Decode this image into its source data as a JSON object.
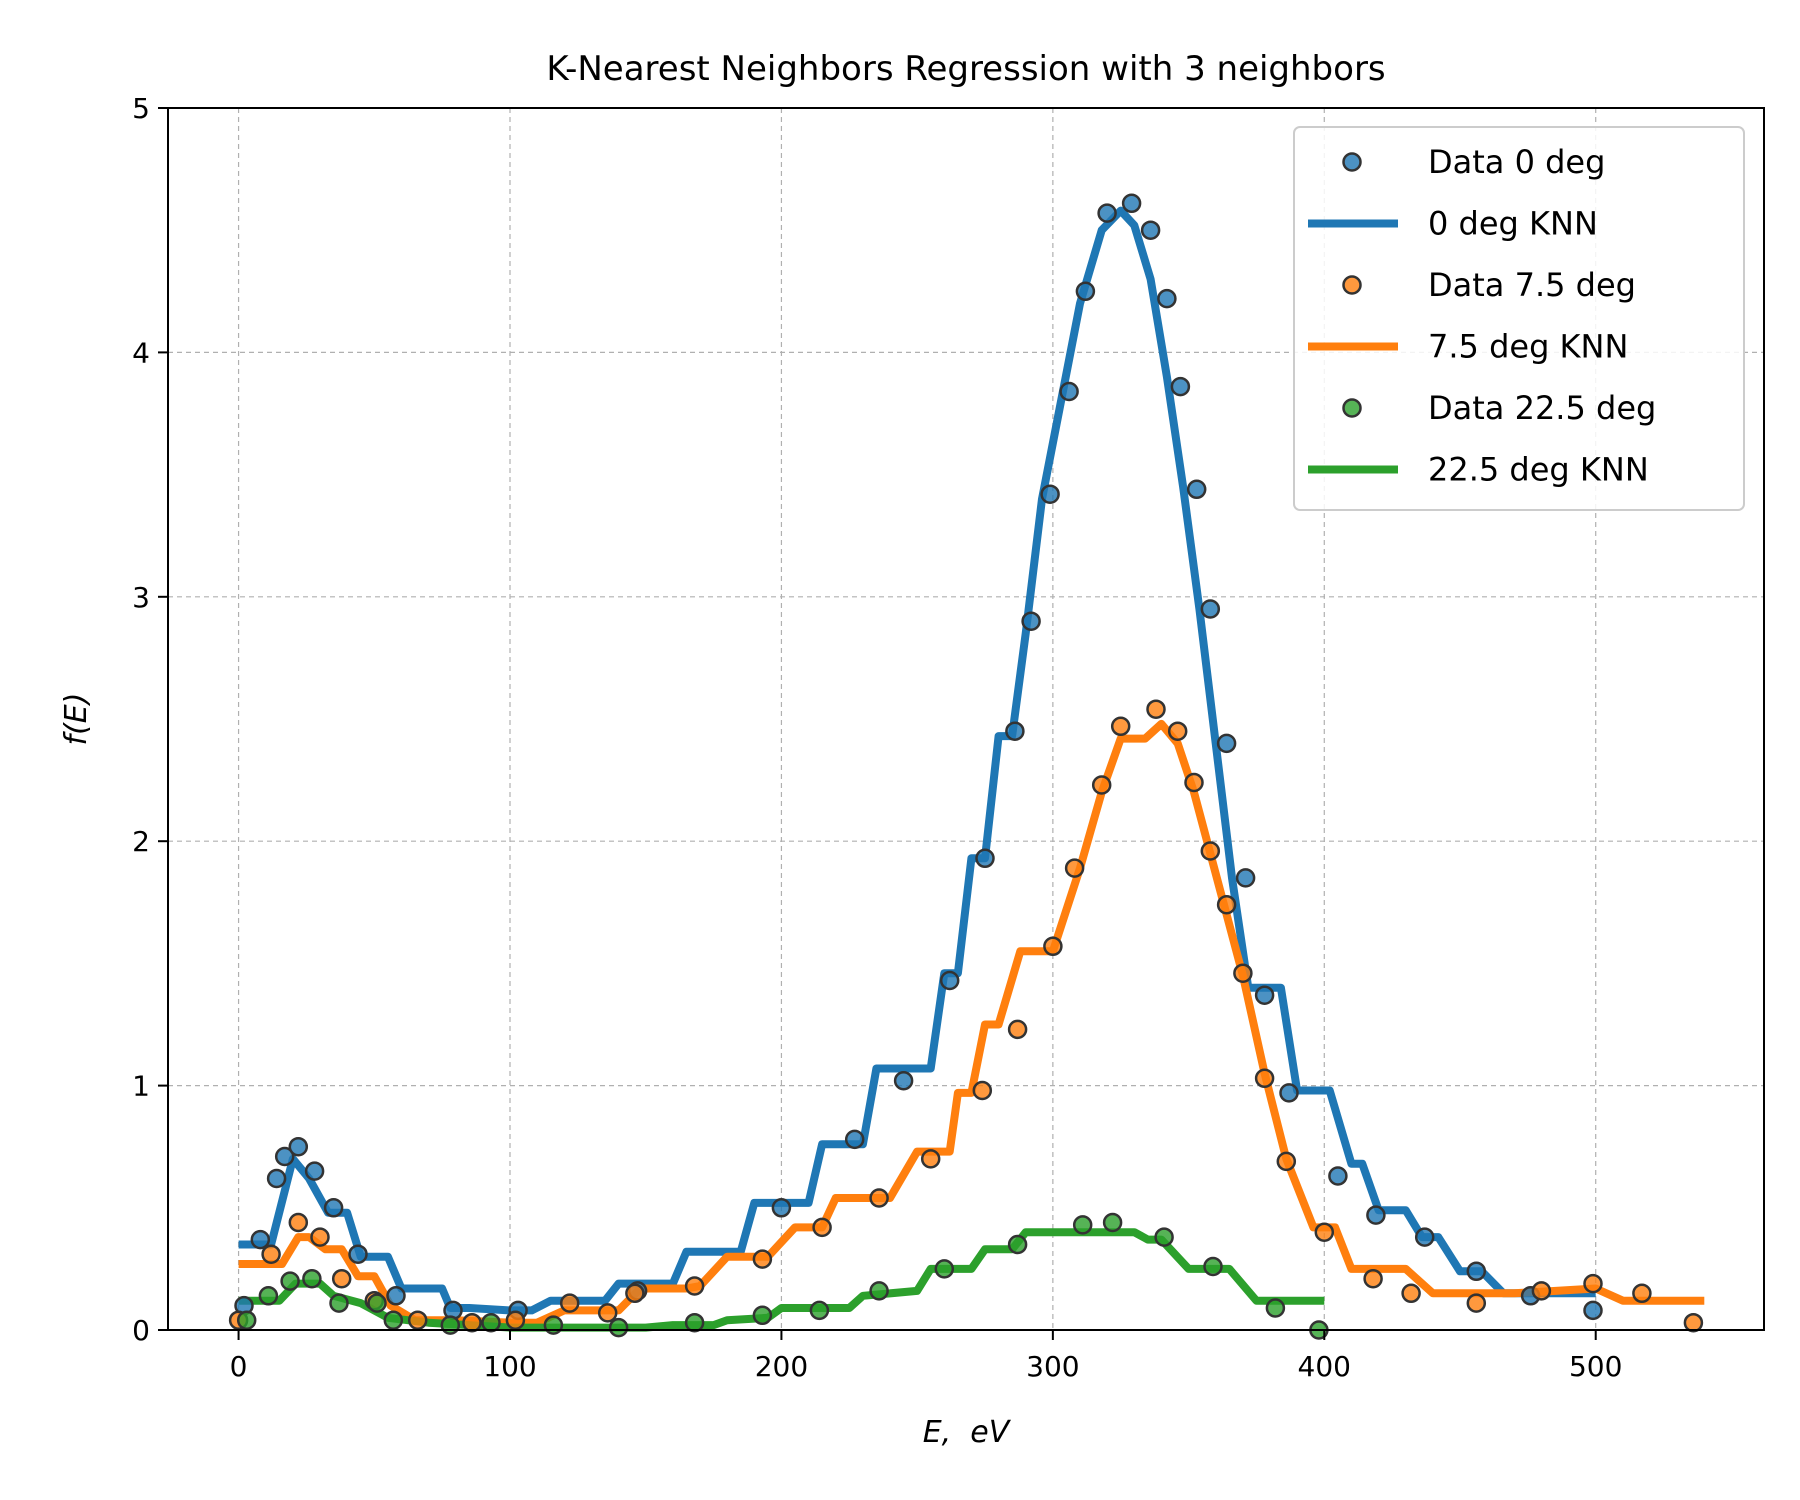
{
  "chart_data": {
    "type": "scatter",
    "title": "K-Nearest Neighbors Regression with 3 neighbors",
    "xlabel": "E,  eV",
    "ylabel": "f(E)",
    "xlim": [
      -26,
      562
    ],
    "ylim": [
      0,
      5
    ],
    "xticks": [
      0,
      100,
      200,
      300,
      400,
      500
    ],
    "yticks": [
      0,
      1,
      2,
      3,
      4,
      5
    ],
    "grid": true,
    "legend_position": "top-right",
    "series": [
      {
        "name": "Data 0 deg",
        "kind": "points",
        "color": "#1f77b4",
        "x": [
          2,
          8,
          14,
          17,
          22,
          28,
          35,
          44,
          58,
          79,
          103,
          147,
          200,
          227,
          245,
          262,
          275,
          286,
          292,
          299,
          306,
          312,
          320,
          329,
          336,
          342,
          347,
          353,
          358,
          364,
          371,
          378,
          387,
          405,
          419,
          437,
          456,
          476,
          499
        ],
        "y": [
          0.1,
          0.37,
          0.62,
          0.71,
          0.75,
          0.65,
          0.5,
          0.31,
          0.14,
          0.08,
          0.08,
          0.16,
          0.5,
          0.78,
          1.02,
          1.43,
          1.93,
          2.45,
          2.9,
          3.42,
          3.84,
          4.25,
          4.57,
          4.61,
          4.5,
          4.22,
          3.86,
          3.44,
          2.95,
          2.4,
          1.85,
          1.37,
          0.97,
          0.63,
          0.47,
          0.38,
          0.24,
          0.14,
          0.08
        ]
      },
      {
        "name": "0 deg KNN",
        "kind": "line",
        "color": "#1f77b4",
        "x": [
          0,
          12,
          20,
          26,
          33,
          40,
          45,
          50,
          55,
          60,
          65,
          70,
          75,
          78,
          85,
          100,
          108,
          115,
          130,
          135,
          140,
          155,
          160,
          165,
          175,
          185,
          190,
          200,
          210,
          215,
          225,
          230,
          235,
          250,
          255,
          260,
          265,
          270,
          275,
          280,
          285,
          290,
          296,
          303,
          310,
          318,
          325,
          330,
          336,
          342,
          348,
          354,
          360,
          366,
          372,
          378,
          384,
          390,
          396,
          402,
          410,
          414,
          420,
          430,
          436,
          442,
          450,
          458,
          466,
          475,
          490,
          500
        ],
        "y": [
          0.35,
          0.35,
          0.7,
          0.62,
          0.48,
          0.48,
          0.3,
          0.3,
          0.3,
          0.17,
          0.17,
          0.17,
          0.17,
          0.09,
          0.09,
          0.08,
          0.08,
          0.12,
          0.12,
          0.12,
          0.19,
          0.19,
          0.19,
          0.32,
          0.32,
          0.32,
          0.52,
          0.52,
          0.52,
          0.76,
          0.76,
          0.76,
          1.07,
          1.07,
          1.07,
          1.46,
          1.46,
          1.93,
          1.93,
          2.43,
          2.43,
          2.85,
          3.4,
          3.8,
          4.2,
          4.5,
          4.58,
          4.52,
          4.3,
          3.9,
          3.45,
          2.95,
          2.4,
          1.85,
          1.4,
          1.4,
          1.4,
          0.98,
          0.98,
          0.98,
          0.68,
          0.68,
          0.49,
          0.49,
          0.38,
          0.38,
          0.24,
          0.24,
          0.15,
          0.15,
          0.15,
          0.15
        ]
      },
      {
        "name": "Data 7.5 deg",
        "kind": "points",
        "color": "#ff7f0e",
        "x": [
          0,
          12,
          22,
          30,
          38,
          50,
          66,
          86,
          102,
          122,
          136,
          146,
          168,
          193,
          215,
          236,
          255,
          274,
          287,
          300,
          308,
          318,
          325,
          338,
          346,
          352,
          358,
          364,
          370,
          378,
          386,
          400,
          418,
          432,
          456,
          480,
          499,
          517,
          536
        ],
        "y": [
          0.04,
          0.31,
          0.44,
          0.38,
          0.21,
          0.12,
          0.04,
          0.03,
          0.04,
          0.11,
          0.07,
          0.15,
          0.18,
          0.29,
          0.42,
          0.54,
          0.7,
          0.98,
          1.23,
          1.57,
          1.89,
          2.23,
          2.47,
          2.54,
          2.45,
          2.24,
          1.96,
          1.74,
          1.46,
          1.03,
          0.69,
          0.4,
          0.21,
          0.15,
          0.11,
          0.16,
          0.19,
          0.15,
          0.03
        ]
      },
      {
        "name": "7.5 deg KNN",
        "kind": "line",
        "color": "#ff7f0e",
        "x": [
          0,
          16,
          22,
          26,
          32,
          38,
          44,
          50,
          56,
          65,
          80,
          100,
          110,
          120,
          130,
          140,
          148,
          165,
          170,
          180,
          190,
          195,
          205,
          210,
          215,
          220,
          225,
          240,
          250,
          255,
          262,
          265,
          270,
          275,
          280,
          288,
          300,
          310,
          318,
          325,
          334,
          340,
          346,
          352,
          358,
          364,
          370,
          378,
          386,
          396,
          404,
          410,
          420,
          430,
          440,
          456,
          470,
          500,
          510,
          540
        ],
        "y": [
          0.27,
          0.27,
          0.38,
          0.38,
          0.33,
          0.33,
          0.22,
          0.22,
          0.1,
          0.04,
          0.04,
          0.03,
          0.03,
          0.08,
          0.08,
          0.08,
          0.17,
          0.17,
          0.18,
          0.3,
          0.3,
          0.3,
          0.42,
          0.42,
          0.42,
          0.54,
          0.54,
          0.54,
          0.73,
          0.73,
          0.73,
          0.97,
          0.97,
          1.25,
          1.25,
          1.55,
          1.55,
          1.89,
          2.2,
          2.42,
          2.42,
          2.48,
          2.4,
          2.2,
          1.95,
          1.7,
          1.45,
          1.05,
          0.7,
          0.42,
          0.42,
          0.25,
          0.25,
          0.25,
          0.15,
          0.15,
          0.15,
          0.17,
          0.12,
          0.12
        ]
      },
      {
        "name": "Data 22.5 deg",
        "kind": "points",
        "color": "#2ca02c",
        "x": [
          3,
          11,
          19,
          27,
          37,
          51,
          57,
          78,
          93,
          116,
          140,
          168,
          193,
          214,
          236,
          260,
          287,
          311,
          322,
          341,
          359,
          382,
          398
        ],
        "y": [
          0.04,
          0.14,
          0.2,
          0.21,
          0.11,
          0.11,
          0.04,
          0.02,
          0.03,
          0.02,
          0.01,
          0.03,
          0.06,
          0.08,
          0.16,
          0.25,
          0.35,
          0.43,
          0.44,
          0.38,
          0.26,
          0.09,
          0.0
        ]
      },
      {
        "name": "22.5 deg KNN",
        "kind": "line",
        "color": "#2ca02c",
        "x": [
          0,
          15,
          21,
          30,
          35,
          45,
          55,
          70,
          100,
          150,
          160,
          175,
          180,
          195,
          200,
          225,
          230,
          250,
          255,
          270,
          275,
          285,
          290,
          330,
          335,
          340,
          350,
          365,
          375,
          400
        ],
        "y": [
          0.12,
          0.12,
          0.19,
          0.19,
          0.14,
          0.11,
          0.05,
          0.03,
          0.01,
          0.01,
          0.02,
          0.02,
          0.04,
          0.05,
          0.09,
          0.09,
          0.14,
          0.16,
          0.25,
          0.25,
          0.33,
          0.33,
          0.4,
          0.4,
          0.37,
          0.37,
          0.25,
          0.25,
          0.12,
          0.12
        ]
      }
    ]
  }
}
